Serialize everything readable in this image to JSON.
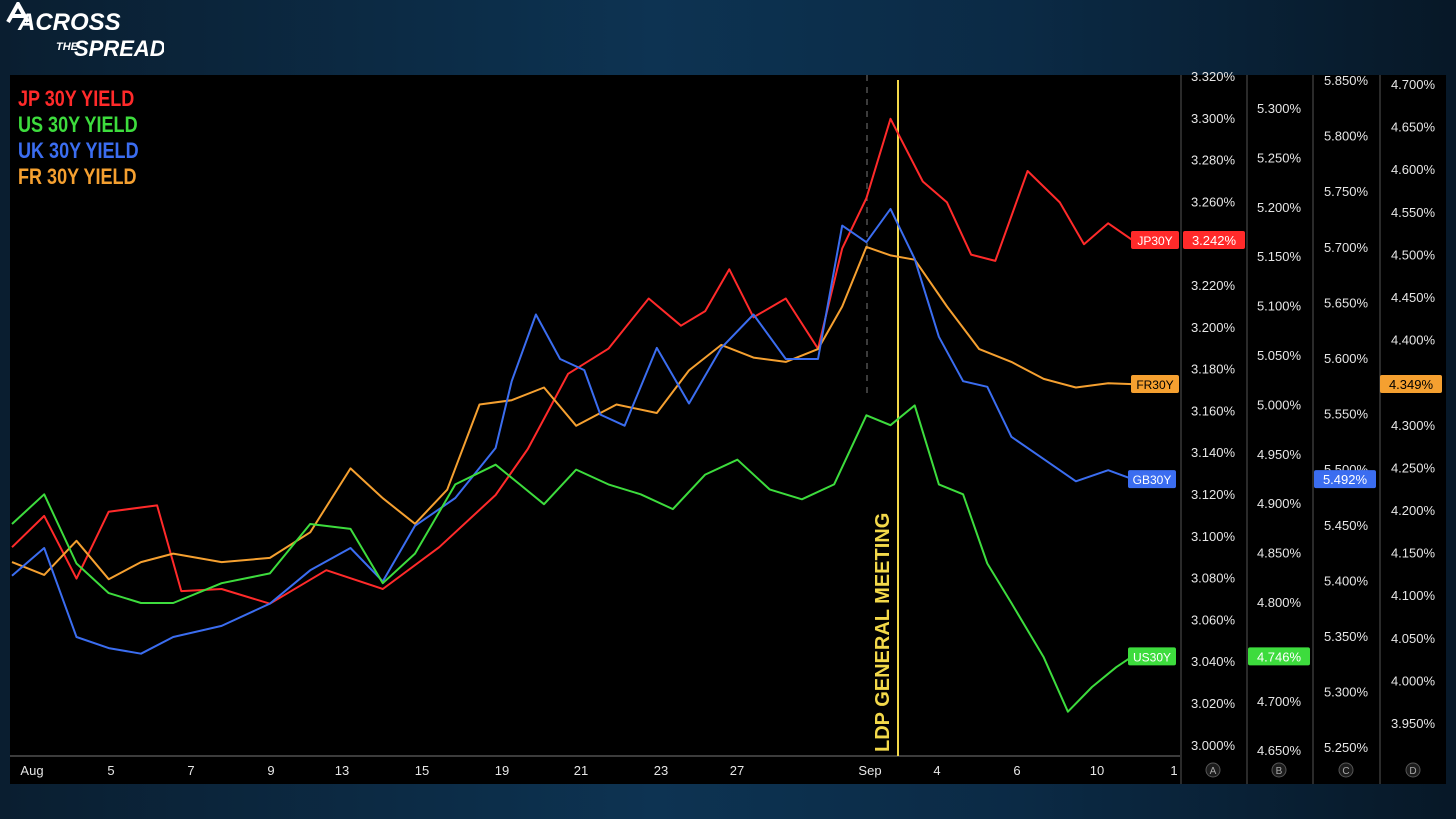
{
  "brand": {
    "line1": "ACROSS",
    "line2": "THE",
    "line3": "SPREAD"
  },
  "chart_data": {
    "type": "line",
    "x_ticks": [
      "Aug",
      "5",
      "7",
      "9",
      "13",
      "15",
      "19",
      "21",
      "23",
      "27",
      "Sep",
      "4",
      "6",
      "10",
      "1"
    ],
    "legend": [
      {
        "name": "JP 30Y YIELD",
        "color": "#ff2a2a"
      },
      {
        "name": "US 30Y YIELD",
        "color": "#3ddc3d"
      },
      {
        "name": "UK 30Y YIELD",
        "color": "#3b6df0"
      },
      {
        "name": "FR 30Y YIELD",
        "color": "#f5a030"
      }
    ],
    "annotation": {
      "text": "LDP GENERAL MEETING",
      "color": "#f3d94a"
    },
    "axes": [
      {
        "id": "A",
        "ticks": [
          "3.320%",
          "3.300%",
          "3.280%",
          "3.260%",
          "3.240%",
          "3.220%",
          "3.200%",
          "3.180%",
          "3.160%",
          "3.140%",
          "3.120%",
          "3.100%",
          "3.080%",
          "3.060%",
          "3.040%",
          "3.020%",
          "3.000%"
        ]
      },
      {
        "id": "B",
        "ticks": [
          "5.300%",
          "5.250%",
          "5.200%",
          "5.150%",
          "5.100%",
          "5.050%",
          "5.000%",
          "4.950%",
          "4.900%",
          "4.850%",
          "4.800%",
          "4.750%",
          "4.700%",
          "4.650%"
        ]
      },
      {
        "id": "C",
        "ticks": [
          "5.850%",
          "5.800%",
          "5.750%",
          "5.700%",
          "5.650%",
          "5.600%",
          "5.550%",
          "5.500%",
          "5.450%",
          "5.400%",
          "5.350%",
          "5.300%",
          "5.250%"
        ]
      },
      {
        "id": "D",
        "ticks": [
          "4.700%",
          "4.650%",
          "4.600%",
          "4.550%",
          "4.500%",
          "4.450%",
          "4.400%",
          "4.350%",
          "4.300%",
          "4.250%",
          "4.200%",
          "4.150%",
          "4.100%",
          "4.050%",
          "4.000%",
          "3.950%"
        ]
      }
    ],
    "series": [
      {
        "id": "jp",
        "label": "JP30Y",
        "value_label": "3.242%",
        "color": "#ff2a2a",
        "x": [
          0,
          0.4,
          0.8,
          1.2,
          1.8,
          2.1,
          2.6,
          3.2,
          3.9,
          4.6,
          5.3,
          6.0,
          6.4,
          6.9,
          7.4,
          7.9,
          8.3,
          8.6,
          8.9,
          9.2,
          9.6,
          10.0,
          10.3,
          10.6,
          10.9,
          11.3,
          11.6,
          11.9,
          12.2,
          12.6,
          13.0,
          13.3,
          13.6,
          13.9
        ],
        "values": [
          3.095,
          3.11,
          3.08,
          3.112,
          3.115,
          3.074,
          3.075,
          3.068,
          3.084,
          3.075,
          3.095,
          3.12,
          3.142,
          3.178,
          3.19,
          3.214,
          3.201,
          3.208,
          3.228,
          3.205,
          3.214,
          3.19,
          3.238,
          3.262,
          3.3,
          3.27,
          3.26,
          3.235,
          3.232,
          3.275,
          3.26,
          3.24,
          3.25,
          3.242
        ]
      },
      {
        "id": "fr",
        "label": "FR30Y",
        "value_label": "4.349%",
        "color": "#f5a030",
        "x": [
          0,
          0.4,
          0.8,
          1.2,
          1.6,
          2.0,
          2.6,
          3.2,
          3.7,
          4.2,
          4.6,
          5.0,
          5.4,
          5.8,
          6.2,
          6.6,
          7.0,
          7.5,
          8.0,
          8.4,
          8.8,
          9.2,
          9.6,
          10.0,
          10.3,
          10.6,
          10.9,
          11.2,
          11.6,
          12.0,
          12.4,
          12.8,
          13.2,
          13.6,
          13.9
        ],
        "values": [
          4.14,
          4.125,
          4.165,
          4.12,
          4.14,
          4.15,
          4.14,
          4.145,
          4.175,
          4.25,
          4.215,
          4.185,
          4.225,
          4.325,
          4.33,
          4.345,
          4.3,
          4.325,
          4.315,
          4.365,
          4.395,
          4.38,
          4.375,
          4.39,
          4.44,
          4.51,
          4.5,
          4.495,
          4.44,
          4.39,
          4.375,
          4.355,
          4.345,
          4.35,
          4.349
        ]
      },
      {
        "id": "uk",
        "label": "GB30Y",
        "value_label": "5.492%",
        "color": "#3b6df0",
        "x": [
          0,
          0.4,
          0.8,
          1.2,
          1.6,
          2.0,
          2.6,
          3.2,
          3.7,
          4.2,
          4.6,
          5.0,
          5.5,
          6.0,
          6.2,
          6.5,
          6.8,
          7.1,
          7.3,
          7.6,
          8.0,
          8.4,
          8.8,
          9.2,
          9.6,
          10.0,
          10.3,
          10.6,
          10.9,
          11.2,
          11.5,
          11.8,
          12.1,
          12.4,
          12.8,
          13.2,
          13.6,
          13.9
        ],
        "values": [
          5.405,
          5.43,
          5.35,
          5.34,
          5.335,
          5.35,
          5.36,
          5.38,
          5.41,
          5.43,
          5.4,
          5.45,
          5.475,
          5.52,
          5.58,
          5.64,
          5.6,
          5.59,
          5.55,
          5.54,
          5.61,
          5.56,
          5.61,
          5.64,
          5.6,
          5.6,
          5.72,
          5.705,
          5.735,
          5.69,
          5.62,
          5.58,
          5.575,
          5.53,
          5.51,
          5.49,
          5.5,
          5.492
        ]
      },
      {
        "id": "us",
        "label": "US30Y",
        "value_label": "4.746%",
        "color": "#3ddc3d",
        "x": [
          0,
          0.4,
          0.8,
          1.2,
          1.6,
          2.0,
          2.6,
          3.2,
          3.7,
          4.2,
          4.6,
          5.0,
          5.5,
          6.0,
          6.3,
          6.6,
          7.0,
          7.4,
          7.8,
          8.2,
          8.6,
          9.0,
          9.4,
          9.8,
          10.2,
          10.6,
          10.9,
          11.2,
          11.5,
          11.8,
          12.1,
          12.4,
          12.8,
          13.1,
          13.4,
          13.7,
          13.9
        ],
        "values": [
          4.88,
          4.91,
          4.84,
          4.81,
          4.8,
          4.8,
          4.82,
          4.83,
          4.88,
          4.875,
          4.82,
          4.85,
          4.92,
          4.94,
          4.92,
          4.9,
          4.935,
          4.92,
          4.91,
          4.895,
          4.93,
          4.945,
          4.915,
          4.905,
          4.92,
          4.99,
          4.98,
          5.0,
          4.92,
          4.91,
          4.84,
          4.8,
          4.745,
          4.69,
          4.715,
          4.735,
          4.746
        ]
      }
    ]
  }
}
